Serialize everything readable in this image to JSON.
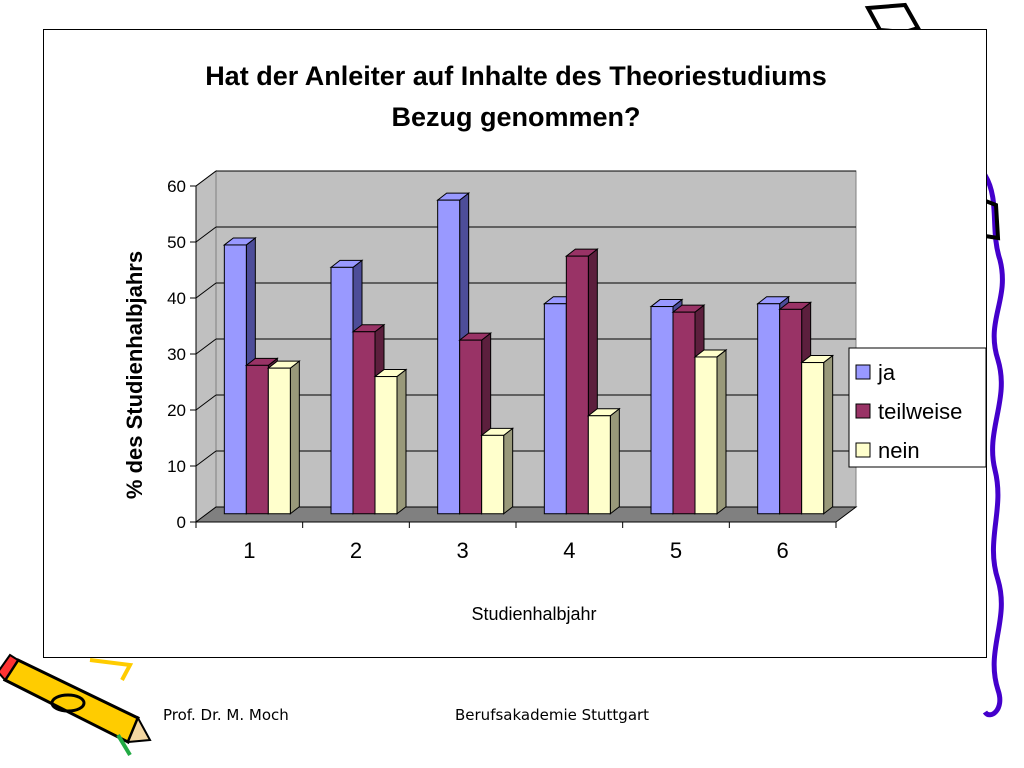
{
  "footer": {
    "author": "Prof. Dr. M. Moch",
    "institution": "Berufsakademie Stuttgart"
  },
  "chart_data": {
    "type": "bar",
    "title_lines": [
      "Hat der Anleiter auf Inhalte des Theoriestudiums",
      "Bezug genommen?"
    ],
    "xlabel": "Studienhalbjahr",
    "ylabel": "% des Studienhalbjahrs",
    "categories": [
      "1",
      "2",
      "3",
      "4",
      "5",
      "6"
    ],
    "ylim": [
      0,
      60
    ],
    "yticks": [
      0,
      10,
      20,
      30,
      40,
      50,
      60
    ],
    "grid": true,
    "legend_position": "right",
    "series": [
      {
        "name": "ja",
        "values": [
          48,
          44,
          56,
          37.5,
          37,
          37.5
        ],
        "color": "#9999ff",
        "side_color": "#4d4d99"
      },
      {
        "name": "teilweise",
        "values": [
          26.5,
          32.5,
          31,
          46,
          36,
          36.5
        ],
        "color": "#993366",
        "side_color": "#5c1f3d"
      },
      {
        "name": "nein",
        "values": [
          26,
          24.5,
          14,
          17.5,
          28,
          27
        ],
        "color": "#ffffcc",
        "side_color": "#99997a"
      }
    ]
  }
}
